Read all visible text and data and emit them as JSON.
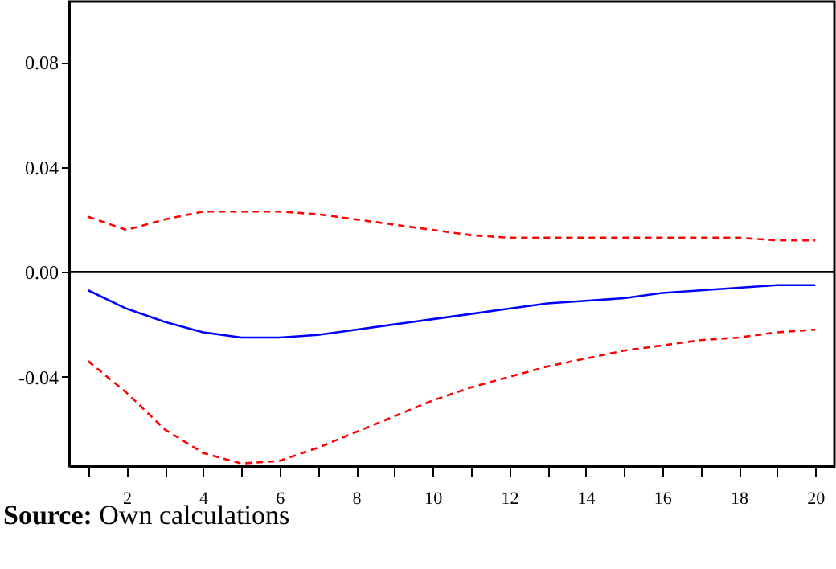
{
  "chart_data": {
    "type": "line",
    "x": [
      1,
      2,
      3,
      4,
      5,
      6,
      7,
      8,
      9,
      10,
      11,
      12,
      13,
      14,
      15,
      16,
      17,
      18,
      19,
      20
    ],
    "series": [
      {
        "color": "#0000ff",
        "line_style": "solid",
        "values": [
          -0.007,
          -0.014,
          -0.019,
          -0.023,
          -0.025,
          -0.025,
          -0.024,
          -0.022,
          -0.02,
          -0.018,
          -0.016,
          -0.014,
          -0.012,
          -0.011,
          -0.01,
          -0.008,
          -0.007,
          -0.006,
          -0.005,
          -0.005
        ]
      },
      {
        "color": "#ff0000",
        "line_style": "dashed",
        "values": [
          0.021,
          0.016,
          0.02,
          0.023,
          0.023,
          0.023,
          0.022,
          0.02,
          0.018,
          0.016,
          0.014,
          0.013,
          0.013,
          0.013,
          0.013,
          0.013,
          0.013,
          0.013,
          0.012,
          0.012
        ]
      },
      {
        "color": "#ff0000",
        "line_style": "dashed",
        "values": [
          -0.034,
          -0.046,
          -0.06,
          -0.069,
          -0.073,
          -0.072,
          -0.067,
          -0.061,
          -0.055,
          -0.049,
          -0.044,
          -0.04,
          -0.036,
          -0.033,
          -0.03,
          -0.028,
          -0.026,
          -0.025,
          -0.023,
          -0.022
        ]
      }
    ],
    "xlim": [
      0.5,
      20.5
    ],
    "xticks": [
      {
        "value": 1,
        "label": null
      },
      2,
      {
        "value": 3,
        "label": null
      },
      4,
      {
        "value": 5,
        "label": null
      },
      6,
      {
        "value": 7,
        "label": null
      },
      8,
      {
        "value": 9,
        "label": null
      },
      10,
      {
        "value": 11,
        "label": null
      },
      12,
      {
        "value": 13,
        "label": null
      },
      14,
      {
        "value": 15,
        "label": null
      },
      16,
      {
        "value": 17,
        "label": null
      },
      18,
      {
        "value": 19,
        "label": null
      },
      20
    ],
    "ylim": [
      -0.074,
      0.103
    ],
    "yticks": [
      {
        "value": -0.04,
        "label": "-0.04"
      },
      {
        "value": 0,
        "label": "0.00"
      },
      {
        "value": 0.04,
        "label": "0.04"
      },
      {
        "value": 0.08,
        "label": "0.08"
      }
    ],
    "legend": false,
    "ref_lines": [
      {
        "axis": "y",
        "value": 0,
        "color": "#000000"
      }
    ],
    "grid": false,
    "annotations": [
      "Source: Own calculations"
    ]
  }
}
